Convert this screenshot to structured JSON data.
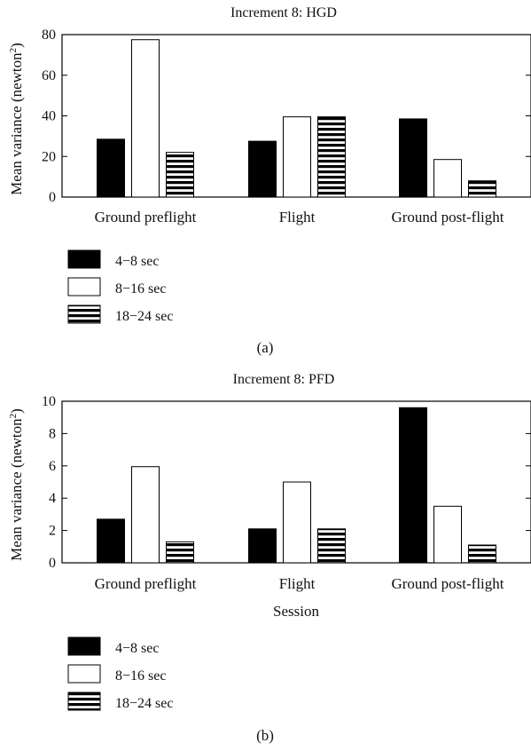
{
  "figure": {
    "legend_items": [
      {
        "label": "4−8 sec",
        "fill": "solid-black"
      },
      {
        "label": "8−16 sec",
        "fill": "white"
      },
      {
        "label": "18−24 sec",
        "fill": "horizontal-stripes"
      }
    ]
  },
  "chart_data": [
    {
      "type": "bar",
      "title": "Increment 8: HGD",
      "panel_label": "(a)",
      "categories": [
        "Ground preflight",
        "Flight",
        "Ground post-flight"
      ],
      "series": [
        {
          "name": "4−8 sec",
          "values": [
            28.5,
            27.5,
            38.5
          ]
        },
        {
          "name": "8−16 sec",
          "values": [
            77.5,
            39.5,
            18.5
          ]
        },
        {
          "name": "18−24 sec",
          "values": [
            22,
            39.5,
            8
          ]
        }
      ],
      "xlabel": "",
      "ylabel": "Mean variance (newton²)",
      "ylabel_main": "Mean variance (newton",
      "ylabel_sup": "2",
      "ylabel_close": ")",
      "ylim": [
        0,
        80
      ],
      "yticks": [
        0,
        20,
        40,
        60,
        80
      ],
      "ytick_labels": [
        "0",
        "20",
        "40",
        "60",
        "80"
      ],
      "grid": false,
      "legend_position": "below"
    },
    {
      "type": "bar",
      "title": "Increment 8: PFD",
      "panel_label": "(b)",
      "categories": [
        "Ground preflight",
        "Flight",
        "Ground post-flight"
      ],
      "series": [
        {
          "name": "4−8 sec",
          "values": [
            2.7,
            2.1,
            9.6
          ]
        },
        {
          "name": "8−16 sec",
          "values": [
            5.95,
            5.0,
            3.5
          ]
        },
        {
          "name": "18−24 sec",
          "values": [
            1.3,
            2.1,
            1.1
          ]
        }
      ],
      "xlabel": "Session",
      "ylabel": "Mean variance (newton²)",
      "ylabel_main": "Mean variance (newton",
      "ylabel_sup": "2",
      "ylabel_close": ")",
      "ylim": [
        0,
        10
      ],
      "yticks": [
        0,
        2,
        4,
        6,
        8,
        10
      ],
      "ytick_labels": [
        "0",
        "2",
        "4",
        "6",
        "8",
        "10"
      ],
      "grid": false,
      "legend_position": "below"
    }
  ]
}
